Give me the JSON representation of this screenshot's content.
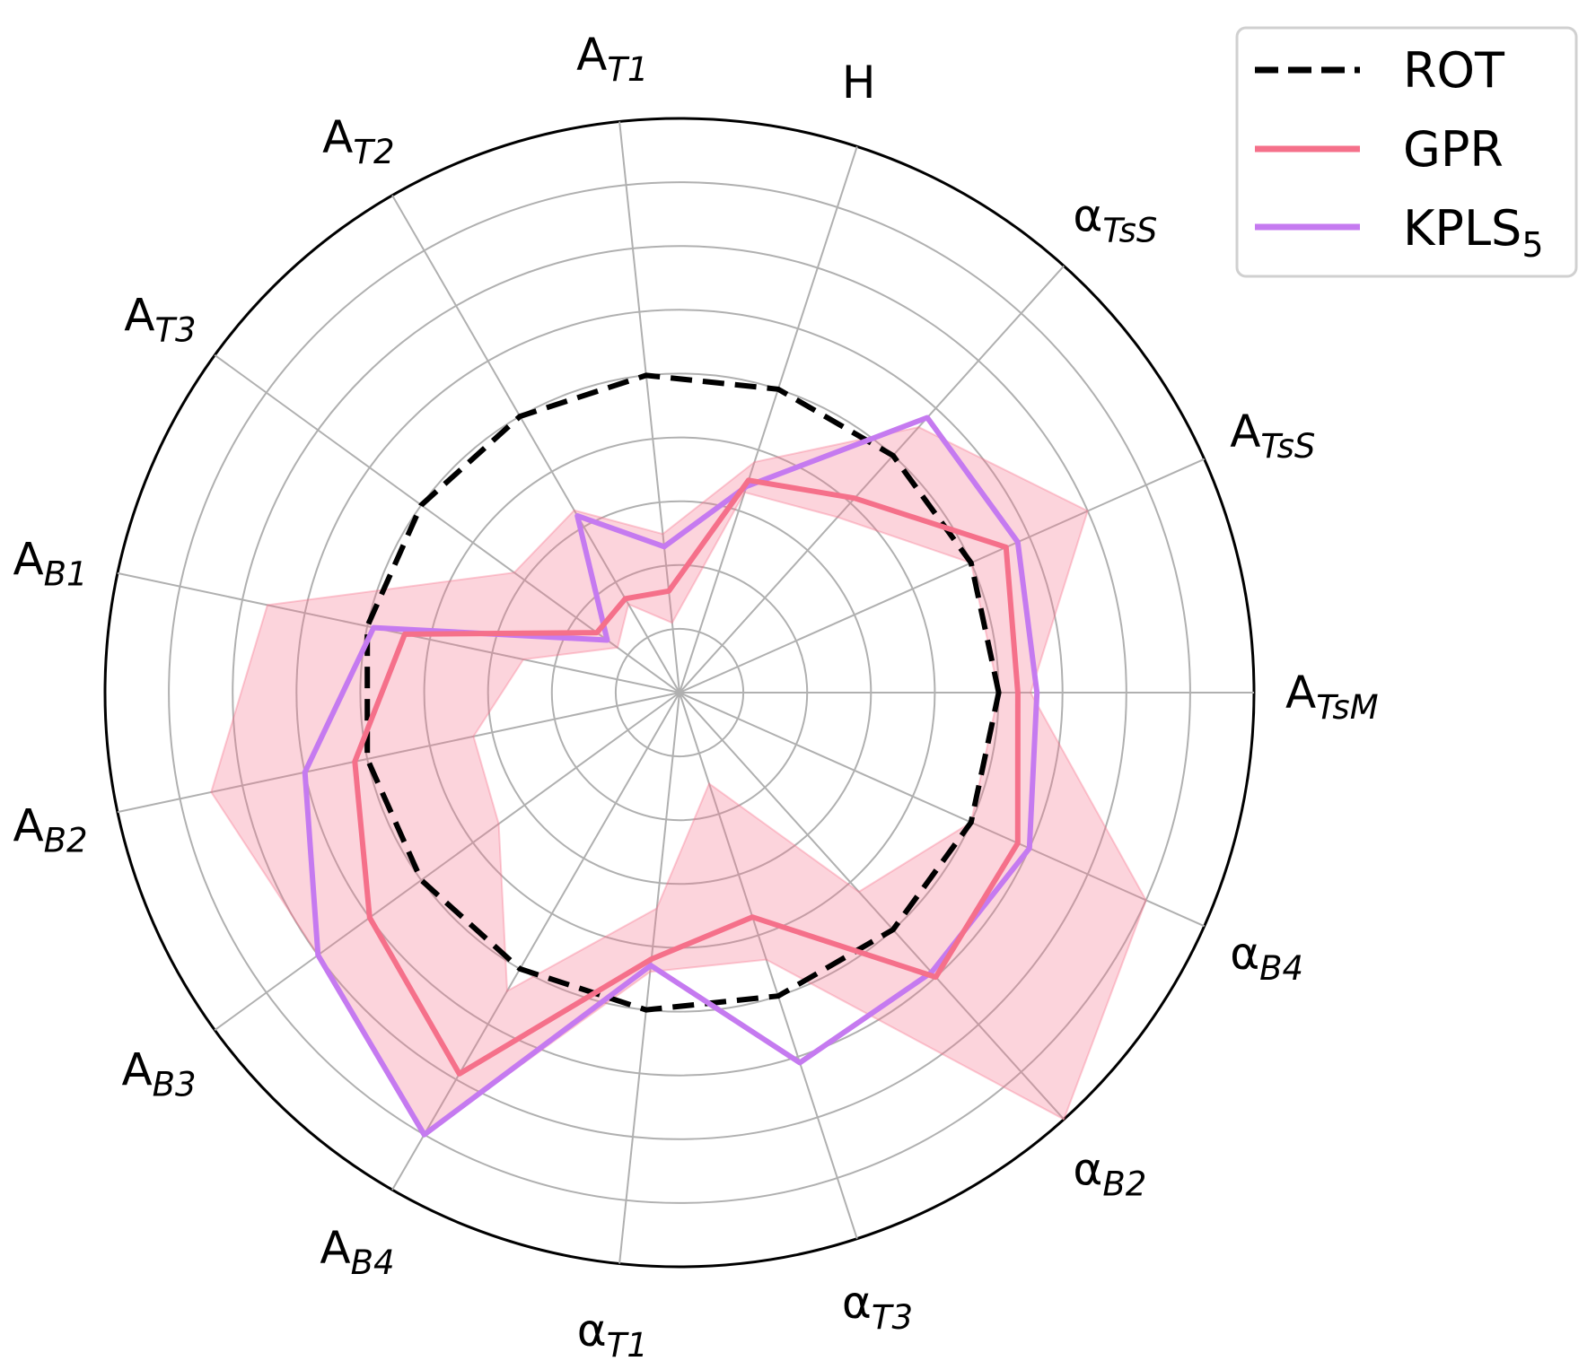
{
  "chart_data": {
    "type": "radar",
    "radial_range": [
      0,
      9
    ],
    "rings": [
      1,
      2,
      3,
      4,
      5,
      6,
      7,
      8,
      9
    ],
    "grid": true,
    "axes": [
      {
        "main": "A",
        "sub": "TsM"
      },
      {
        "main": "A",
        "sub": "TsS"
      },
      {
        "main": "α",
        "sub": "TsS"
      },
      {
        "main": "H",
        "sub": ""
      },
      {
        "main": "A",
        "sub": "T1"
      },
      {
        "main": "A",
        "sub": "T2"
      },
      {
        "main": "A",
        "sub": "T3"
      },
      {
        "main": "A",
        "sub": "B1"
      },
      {
        "main": "A",
        "sub": "B2"
      },
      {
        "main": "A",
        "sub": "B3"
      },
      {
        "main": "A",
        "sub": "B4"
      },
      {
        "main": "α",
        "sub": "T1"
      },
      {
        "main": "α",
        "sub": "T3"
      },
      {
        "main": "α",
        "sub": "B2"
      },
      {
        "main": "α",
        "sub": "B4"
      }
    ],
    "series": [
      {
        "name": "ROT",
        "style": "dashed",
        "color": "#000000",
        "values": [
          5.0,
          5.0,
          5.0,
          5.0,
          5.0,
          5.0,
          5.0,
          5.0,
          5.0,
          5.0,
          5.0,
          5.0,
          5.0,
          5.0,
          5.0
        ]
      },
      {
        "name": "GPR",
        "style": "solid",
        "color": "#f5708a",
        "values": [
          5.3,
          5.6,
          4.1,
          3.5,
          1.6,
          1.7,
          1.6,
          4.4,
          5.2,
          6.0,
          6.9,
          4.2,
          3.7,
          6.0,
          5.8
        ],
        "band_lower": [
          5.0,
          5.0,
          3.7,
          3.3,
          1.1,
          1.6,
          1.2,
          2.5,
          3.3,
          3.5,
          5.4,
          3.4,
          1.5,
          4.2,
          5.0
        ],
        "band_upper": [
          5.5,
          7.0,
          5.6,
          3.8,
          2.5,
          3.3,
          3.2,
          6.6,
          7.5,
          7.0,
          8.0,
          4.4,
          4.4,
          9.0,
          8.0
        ]
      },
      {
        "name": "KPLS",
        "name_sub": "5",
        "style": "solid",
        "color": "#c57af0",
        "values": [
          5.6,
          5.8,
          5.8,
          3.4,
          2.3,
          3.2,
          1.4,
          4.9,
          6.0,
          7.0,
          8.0,
          4.3,
          6.1,
          5.9,
          6.0
        ]
      }
    ],
    "legend": {
      "position": "top-right",
      "entries": [
        {
          "label": "ROT",
          "sub": ""
        },
        {
          "label": "GPR",
          "sub": ""
        },
        {
          "label": "KPLS",
          "sub": "5"
        }
      ]
    }
  }
}
